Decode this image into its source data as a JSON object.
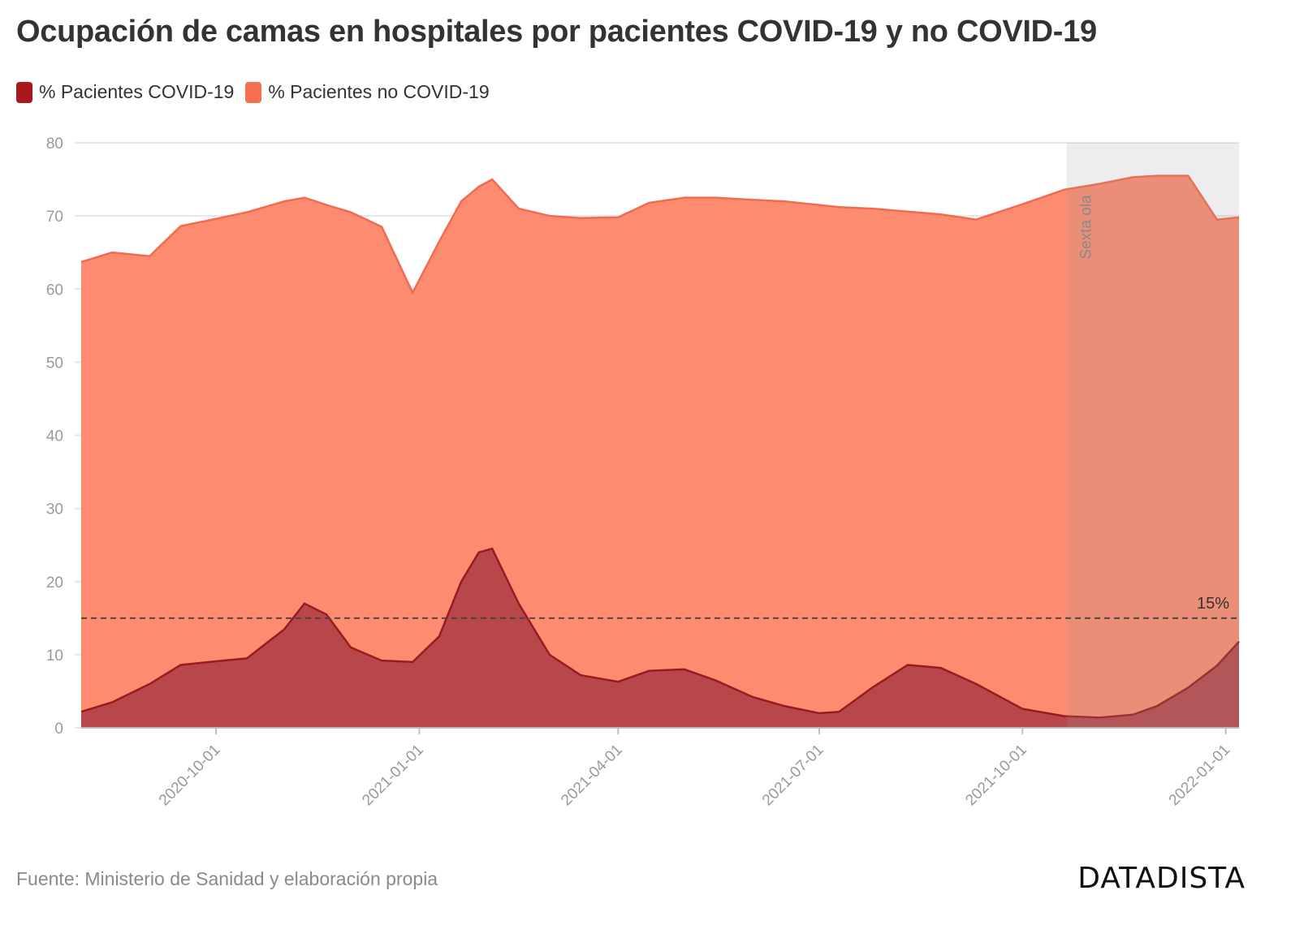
{
  "title": "Ocupación de camas en hospitales por pacientes COVID-19 y no COVID-19",
  "source": "Fuente: Ministerio de Sanidad y elaboración propia",
  "brand": "DATADISTA",
  "colors": {
    "covid": "#b7474a",
    "covid_line": "#9b1a1f",
    "covid_swatch": "#a8181d",
    "no_covid": "#fd8b70",
    "no_covid_line": "#f26a4f",
    "no_covid_swatch": "#f6704f",
    "band": "#9a9a9a"
  },
  "chart_data": {
    "type": "area",
    "stacked": true,
    "ylim": [
      0,
      80
    ],
    "yticks": [
      0,
      10,
      20,
      30,
      40,
      50,
      60,
      70,
      80
    ],
    "xlim": [
      "2020-08-01",
      "2022-01-07"
    ],
    "xticks": [
      "2020-10-01",
      "2021-01-01",
      "2021-04-01",
      "2021-07-01",
      "2021-10-01",
      "2022-01-01"
    ],
    "legend_position": "top-left",
    "series": [
      {
        "name": "% Pacientes COVID-19",
        "points": [
          [
            "2020-08-01",
            2.2
          ],
          [
            "2020-08-15",
            3.5
          ],
          [
            "2020-09-01",
            6.0
          ],
          [
            "2020-09-15",
            8.6
          ],
          [
            "2020-10-01",
            9.1
          ],
          [
            "2020-10-15",
            9.5
          ],
          [
            "2020-11-01",
            13.5
          ],
          [
            "2020-11-10",
            17.0
          ],
          [
            "2020-11-20",
            15.5
          ],
          [
            "2020-12-01",
            11.0
          ],
          [
            "2020-12-15",
            9.2
          ],
          [
            "2020-12-29",
            9.0
          ],
          [
            "2021-01-10",
            12.5
          ],
          [
            "2021-01-20",
            20.0
          ],
          [
            "2021-01-28",
            24.0
          ],
          [
            "2021-02-03",
            24.5
          ],
          [
            "2021-02-15",
            17.0
          ],
          [
            "2021-03-01",
            10.0
          ],
          [
            "2021-03-15",
            7.2
          ],
          [
            "2021-04-01",
            6.3
          ],
          [
            "2021-04-15",
            7.8
          ],
          [
            "2021-05-01",
            8.0
          ],
          [
            "2021-05-15",
            6.5
          ],
          [
            "2021-06-01",
            4.2
          ],
          [
            "2021-06-15",
            3.0
          ],
          [
            "2021-07-01",
            2.0
          ],
          [
            "2021-07-10",
            2.2
          ],
          [
            "2021-07-25",
            5.5
          ],
          [
            "2021-08-10",
            8.6
          ],
          [
            "2021-08-25",
            8.2
          ],
          [
            "2021-09-10",
            6.0
          ],
          [
            "2021-10-01",
            2.6
          ],
          [
            "2021-10-20",
            1.6
          ],
          [
            "2021-11-05",
            1.4
          ],
          [
            "2021-11-20",
            1.8
          ],
          [
            "2021-12-01",
            3.0
          ],
          [
            "2021-12-15",
            5.5
          ],
          [
            "2021-12-28",
            8.5
          ],
          [
            "2022-01-07",
            11.8
          ]
        ]
      },
      {
        "name": "% Pacientes no COVID-19",
        "points": [
          [
            "2020-08-01",
            61.5
          ],
          [
            "2020-08-15",
            61.5
          ],
          [
            "2020-09-01",
            58.5
          ],
          [
            "2020-09-15",
            60.0
          ],
          [
            "2020-10-01",
            60.5
          ],
          [
            "2020-10-15",
            61.0
          ],
          [
            "2020-11-01",
            58.5
          ],
          [
            "2020-11-10",
            55.5
          ],
          [
            "2020-11-20",
            56.0
          ],
          [
            "2020-12-01",
            59.5
          ],
          [
            "2020-12-15",
            59.3
          ],
          [
            "2020-12-29",
            50.5
          ],
          [
            "2021-01-10",
            54.0
          ],
          [
            "2021-01-20",
            52.0
          ],
          [
            "2021-01-28",
            50.0
          ],
          [
            "2021-02-03",
            50.5
          ],
          [
            "2021-02-15",
            54.0
          ],
          [
            "2021-03-01",
            60.0
          ],
          [
            "2021-03-15",
            62.5
          ],
          [
            "2021-04-01",
            63.5
          ],
          [
            "2021-04-15",
            64.0
          ],
          [
            "2021-05-01",
            64.5
          ],
          [
            "2021-05-15",
            66.0
          ],
          [
            "2021-06-01",
            68.0
          ],
          [
            "2021-06-15",
            69.0
          ],
          [
            "2021-07-01",
            69.5
          ],
          [
            "2021-07-10",
            69.0
          ],
          [
            "2021-07-25",
            65.5
          ],
          [
            "2021-08-10",
            62.0
          ],
          [
            "2021-08-25",
            62.0
          ],
          [
            "2021-09-10",
            63.5
          ],
          [
            "2021-10-01",
            69.0
          ],
          [
            "2021-10-20",
            72.0
          ],
          [
            "2021-11-05",
            73.0
          ],
          [
            "2021-11-20",
            73.5
          ],
          [
            "2021-12-01",
            72.5
          ],
          [
            "2021-12-15",
            70.0
          ],
          [
            "2021-12-28",
            61.0
          ],
          [
            "2022-01-07",
            58.0
          ]
        ]
      }
    ],
    "reference_line": {
      "y": 15,
      "label": "15%"
    },
    "highlight_band": {
      "start": "2021-10-21",
      "end": "2022-01-07",
      "label": "Sexta ola"
    }
  }
}
